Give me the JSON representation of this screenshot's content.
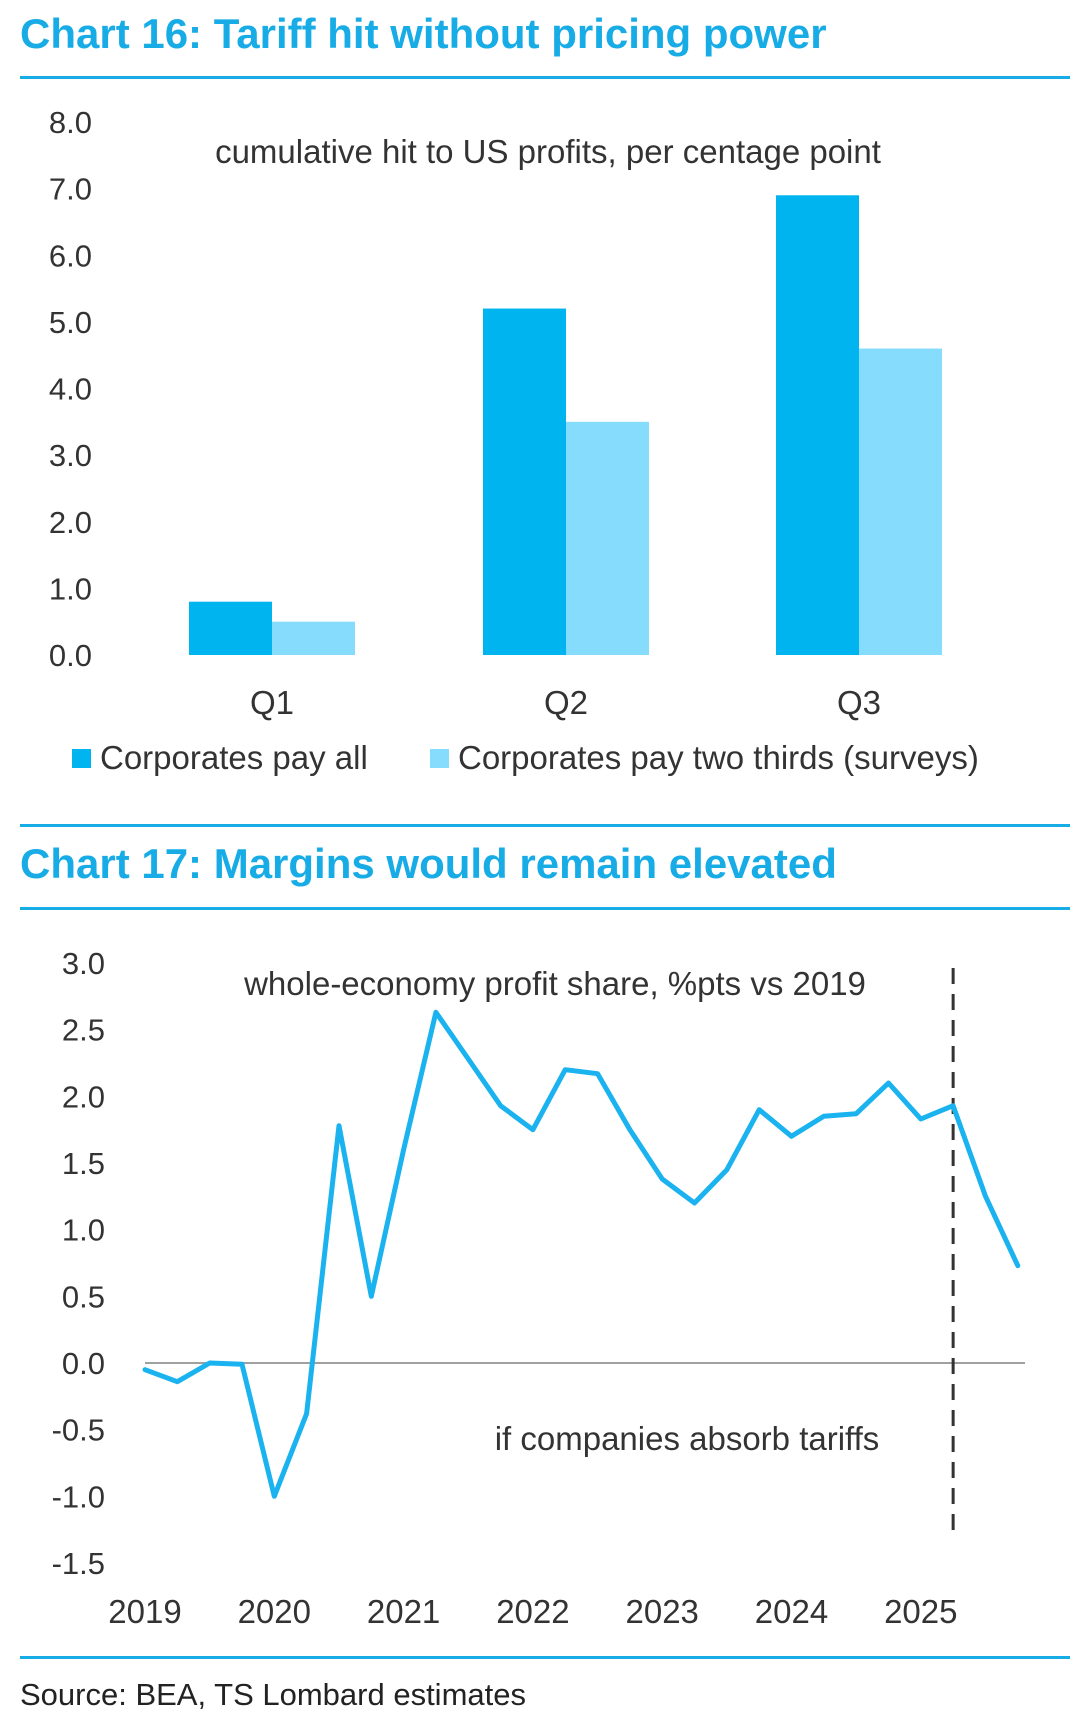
{
  "charts": [
    {
      "title": "Chart 16: Tariff hit without pricing power"
    },
    {
      "title": "Chart 17: Margins would remain elevated"
    }
  ],
  "source": "Source: BEA, TS Lombard estimates",
  "colors": {
    "accent": "#18ace6",
    "series_dark": "#00b4f0",
    "series_light": "#86dcfd",
    "line": "#1ab3ef",
    "zero_line": "#a0a0a0",
    "divider": "#333333"
  },
  "chart_data": [
    {
      "type": "bar",
      "title": "Chart 16: Tariff hit without pricing power",
      "subtitle": "cumulative hit to US profits, per centage point",
      "categories": [
        "Q1",
        "Q2",
        "Q3"
      ],
      "series": [
        {
          "name": "Corporates pay all",
          "values": [
            0.8,
            5.2,
            6.9
          ],
          "color": "#00b4f0"
        },
        {
          "name": "Corporates pay two thirds (surveys)",
          "values": [
            0.5,
            3.5,
            4.6
          ],
          "color": "#86dcfd"
        }
      ],
      "ylim": [
        0,
        8
      ],
      "yticks": [
        "8.0",
        "7.0",
        "6.0",
        "5.0",
        "4.0",
        "3.0",
        "2.0",
        "1.0",
        "0.0"
      ],
      "legend": "bottom",
      "grid": false
    },
    {
      "type": "line",
      "title": "Chart 17: Margins would remain elevated",
      "subtitle": "whole-economy profit share, %pts vs 2019",
      "annotation": "if companies absorb tariffs",
      "x_start": "2019 Q1",
      "x_ticks": [
        "2019",
        "2020",
        "2021",
        "2022",
        "2023",
        "2024",
        "2025"
      ],
      "series": [
        {
          "quarters": [
            "2019 Q1",
            "2019 Q2",
            "2019 Q3",
            "2019 Q4",
            "2020 Q1",
            "2020 Q2",
            "2020 Q3",
            "2020 Q4",
            "2021 Q1",
            "2021 Q2",
            "2021 Q3",
            "2021 Q4",
            "2022 Q1",
            "2022 Q2",
            "2022 Q3",
            "2022 Q4",
            "2023 Q1",
            "2023 Q2",
            "2023 Q3",
            "2023 Q4",
            "2024 Q1",
            "2024 Q2",
            "2024 Q3",
            "2024 Q4",
            "2025 Q1",
            "2025 Q2",
            "2025 Q3",
            "2025 Q4"
          ],
          "values": [
            -0.05,
            -0.14,
            0.0,
            -0.01,
            -1.0,
            -0.38,
            1.78,
            0.5,
            1.6,
            2.63,
            2.28,
            1.93,
            1.75,
            2.2,
            2.17,
            1.75,
            1.38,
            1.2,
            1.45,
            1.9,
            1.7,
            1.85,
            1.87,
            2.1,
            1.83,
            1.93,
            1.25,
            0.73
          ]
        }
      ],
      "divider_at": "2025 Q2",
      "ylim": [
        -1.5,
        3.0
      ],
      "yticks": [
        "3.0",
        "2.5",
        "2.0",
        "1.5",
        "1.0",
        "0.5",
        "0.0",
        "-0.5",
        "-1.0",
        "-1.5"
      ],
      "grid": false
    }
  ]
}
